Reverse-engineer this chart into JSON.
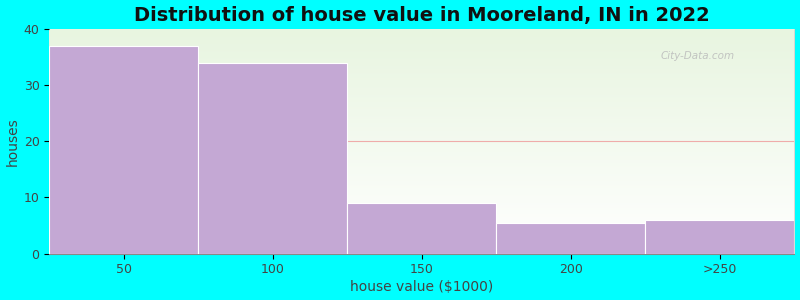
{
  "title": "Distribution of house value in Mooreland, IN in 2022",
  "xlabel": "house value ($1000)",
  "ylabel": "houses",
  "categories": [
    "50",
    "100",
    "150",
    "200",
    ">250"
  ],
  "values": [
    37,
    34,
    9,
    5.5,
    6
  ],
  "bar_color": "#C4A8D4",
  "background_color": "#00FFFF",
  "plot_bg_top": "#FFFFFF",
  "plot_bg_bottom": "#E8F5E0",
  "ylim": [
    0,
    40
  ],
  "yticks": [
    0,
    10,
    20,
    30,
    40
  ],
  "grid_color": "#EE9999",
  "title_fontsize": 14,
  "axis_fontsize": 10,
  "tick_fontsize": 9,
  "label_color": "#444444",
  "watermark_text": "City-Data.com"
}
